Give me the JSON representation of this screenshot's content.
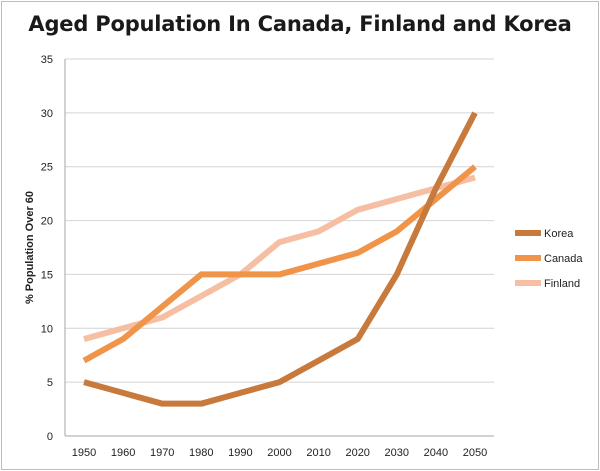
{
  "chart_data": {
    "type": "line",
    "title": "Aged Population In Canada, Finland and Korea",
    "xlabel": "",
    "ylabel": "% Population Over 60",
    "x": [
      1950,
      1960,
      1970,
      1980,
      1990,
      2000,
      2010,
      2020,
      2030,
      2040,
      2050
    ],
    "ylim": [
      0,
      35
    ],
    "yticks": [
      0,
      5,
      10,
      15,
      20,
      25,
      30,
      35
    ],
    "grid": true,
    "legend_position": "right",
    "series": [
      {
        "name": "Korea",
        "color": "#c87a3c",
        "values": [
          5,
          4,
          3,
          3,
          4,
          5,
          7,
          9,
          15,
          23,
          30
        ]
      },
      {
        "name": "Canada",
        "color": "#f0944a",
        "values": [
          7,
          9,
          12,
          15,
          15,
          15,
          16,
          17,
          19,
          22,
          25
        ]
      },
      {
        "name": "Finland",
        "color": "#f6bfa4",
        "values": [
          9,
          10,
          11,
          13,
          15,
          18,
          19,
          21,
          22,
          23,
          24
        ]
      }
    ]
  }
}
